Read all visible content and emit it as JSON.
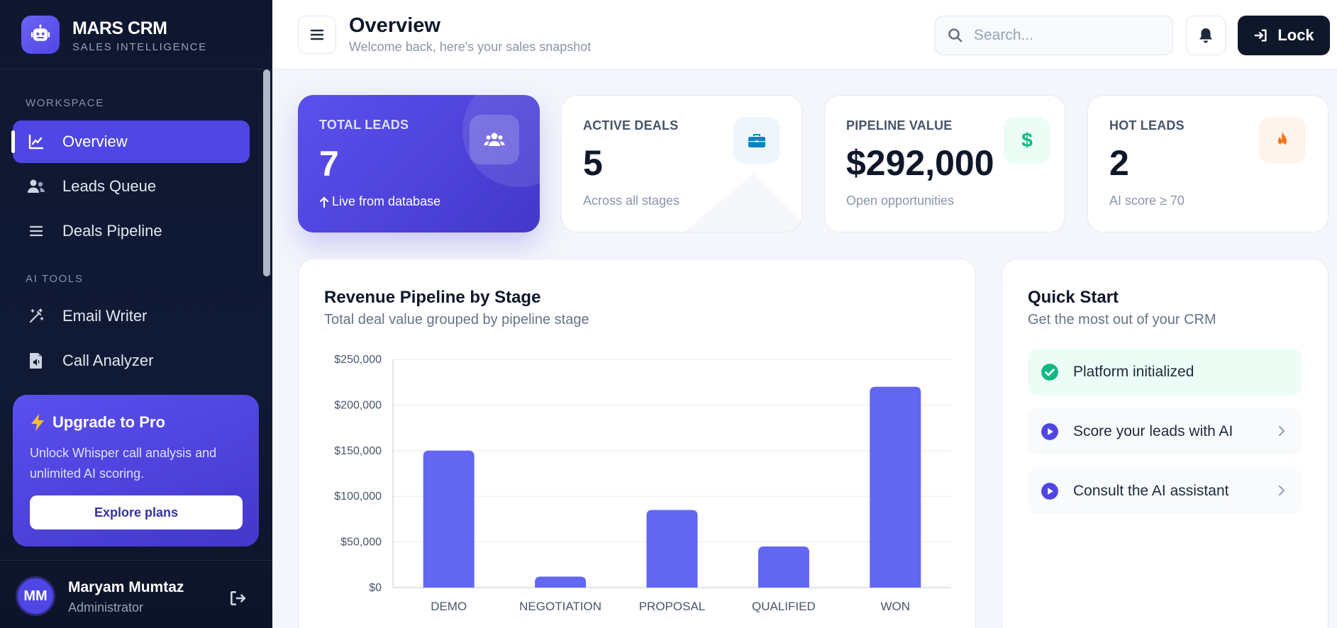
{
  "brand": {
    "title": "MARS CRM",
    "subtitle": "SALES INTELLIGENCE"
  },
  "sidebar": {
    "sections": [
      {
        "label": "WORKSPACE"
      },
      {
        "label": "AI TOOLS"
      }
    ],
    "items": [
      {
        "label": "Overview",
        "icon": "chart-line-icon",
        "active": true
      },
      {
        "label": "Leads Queue",
        "icon": "users-icon",
        "active": false
      },
      {
        "label": "Deals Pipeline",
        "icon": "list-icon",
        "active": false
      },
      {
        "label": "Email Writer",
        "icon": "magic-wand-icon",
        "active": false
      },
      {
        "label": "Call Analyzer",
        "icon": "audio-file-icon",
        "active": false
      }
    ],
    "upgrade": {
      "title": "Upgrade to Pro",
      "text": "Unlock Whisper call analysis and unlimited AI scoring.",
      "button": "Explore plans"
    },
    "user": {
      "initials": "MM",
      "name": "Maryam Mumtaz",
      "role": "Administrator"
    }
  },
  "header": {
    "title": "Overview",
    "subtitle": "Welcome back, here's your sales snapshot",
    "search_placeholder": "Search...",
    "lock_label": "Lock"
  },
  "stats": [
    {
      "label": "TOTAL LEADS",
      "value": "7",
      "foot": "Live from database",
      "icon": "users-icon"
    },
    {
      "label": "ACTIVE DEALS",
      "value": "5",
      "foot": "Across all stages",
      "icon": "briefcase-icon"
    },
    {
      "label": "PIPELINE VALUE",
      "value": "$292,000",
      "foot": "Open opportunities",
      "icon": "dollar-icon"
    },
    {
      "label": "HOT LEADS",
      "value": "2",
      "foot": "AI score ≥ 70",
      "icon": "fire-icon"
    }
  ],
  "chart_panel": {
    "title": "Revenue Pipeline by Stage",
    "subtitle": "Total deal value grouped by pipeline stage"
  },
  "chart_data": {
    "type": "bar",
    "categories": [
      "DEMO",
      "NEGOTIATION",
      "PROPOSAL",
      "QUALIFIED",
      "WON"
    ],
    "values": [
      150000,
      12000,
      85000,
      45000,
      220000
    ],
    "yticks": [
      "$0",
      "$50,000",
      "$100,000",
      "$150,000",
      "$200,000",
      "$250,000"
    ],
    "ylim": [
      0,
      250000
    ],
    "grid": true,
    "color": "#6366f1"
  },
  "quick_start": {
    "title": "Quick Start",
    "subtitle": "Get the most out of your CRM",
    "items": [
      {
        "label": "Platform initialized",
        "done": true
      },
      {
        "label": "Score your leads with AI",
        "done": false
      },
      {
        "label": "Consult the AI assistant",
        "done": false
      }
    ]
  },
  "colors": {
    "accent": "#4f46e5",
    "sidebar_bg": "#0f1730",
    "success": "#10b981",
    "teal": "#10b981",
    "orange": "#f97316",
    "blue": "#0284c7"
  }
}
